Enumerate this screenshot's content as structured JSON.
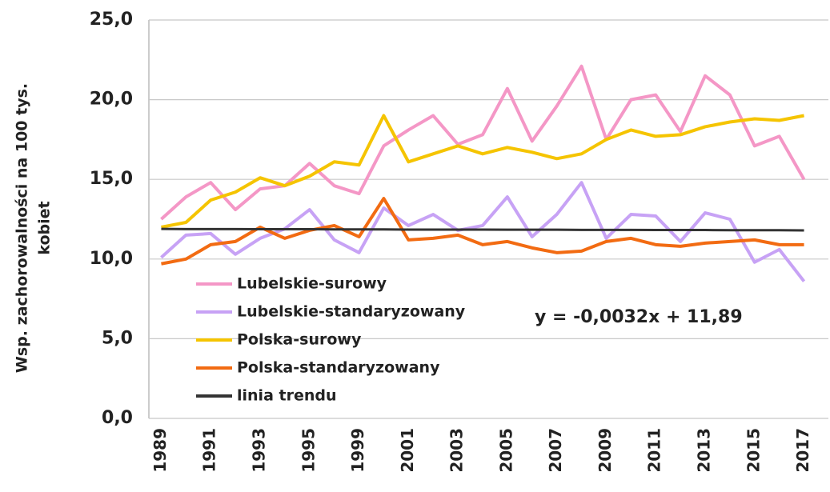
{
  "chart_data": {
    "type": "line",
    "ylabel": [
      "Wsp. zachorowalności na 100 tys.",
      "kobiet"
    ],
    "annotation": "y = -0,0032x + 11,89",
    "categories": [
      "1989",
      null,
      "1991",
      null,
      "1993",
      null,
      "1995",
      null,
      "1999",
      null,
      "2001",
      null,
      "2003",
      null,
      "2005",
      null,
      "2007",
      null,
      "2009",
      null,
      "2011",
      null,
      "2013",
      null,
      "2015",
      null,
      "2017"
    ],
    "series": [
      {
        "name": "Lubelskie-surowy",
        "color": "#f497c6",
        "values": [
          12.5,
          13.9,
          14.8,
          13.1,
          14.4,
          14.6,
          16.0,
          14.6,
          14.1,
          17.1,
          18.1,
          19.0,
          17.2,
          17.8,
          20.7,
          17.4,
          19.6,
          22.1,
          17.5,
          20.0,
          20.3,
          18.0,
          21.5,
          20.3,
          17.1,
          17.7,
          15.0
        ]
      },
      {
        "name": "Lubelskie-standaryzowany",
        "color": "#c7a2f5",
        "values": [
          10.1,
          11.5,
          11.6,
          10.3,
          11.3,
          11.9,
          13.1,
          11.2,
          10.4,
          13.2,
          12.1,
          12.8,
          11.8,
          12.1,
          13.9,
          11.4,
          12.8,
          14.8,
          11.3,
          12.8,
          12.7,
          11.1,
          12.9,
          12.5,
          9.8,
          10.6,
          8.6
        ]
      },
      {
        "name": "Polska-surowy",
        "color": "#f5c400",
        "values": [
          12.0,
          12.3,
          13.7,
          14.2,
          15.1,
          14.6,
          15.2,
          16.1,
          15.9,
          19.0,
          16.1,
          16.6,
          17.1,
          16.6,
          17.0,
          16.7,
          16.3,
          16.6,
          17.5,
          18.1,
          17.7,
          17.8,
          18.3,
          18.6,
          18.8,
          18.7,
          19.0
        ]
      },
      {
        "name": "Polska-standaryzowany",
        "color": "#f26b12",
        "values": [
          9.7,
          10.0,
          10.9,
          11.1,
          12.0,
          11.3,
          11.8,
          12.1,
          11.4,
          13.8,
          11.2,
          11.3,
          11.5,
          10.9,
          11.1,
          10.7,
          10.4,
          10.5,
          11.1,
          11.3,
          10.9,
          10.8,
          11.0,
          11.1,
          11.2,
          10.9,
          10.9
        ]
      },
      {
        "name": "linia trendu",
        "color": "#333333",
        "values": [
          11.89,
          11.88,
          11.88,
          11.88,
          11.87,
          11.87,
          11.87,
          11.86,
          11.86,
          11.86,
          11.85,
          11.85,
          11.85,
          11.85,
          11.84,
          11.84,
          11.84,
          11.83,
          11.83,
          11.83,
          11.82,
          11.82,
          11.82,
          11.81,
          11.81,
          11.81,
          11.8
        ]
      }
    ],
    "ylim": [
      0,
      25
    ],
    "yticks": [
      {
        "value": 0,
        "label": "0,0"
      },
      {
        "value": 5,
        "label": "5,0"
      },
      {
        "value": 10,
        "label": "10,0"
      },
      {
        "value": 15,
        "label": "15,0"
      },
      {
        "value": 20,
        "label": "20,0"
      },
      {
        "value": 25,
        "label": "25,0"
      }
    ],
    "grid": true
  }
}
